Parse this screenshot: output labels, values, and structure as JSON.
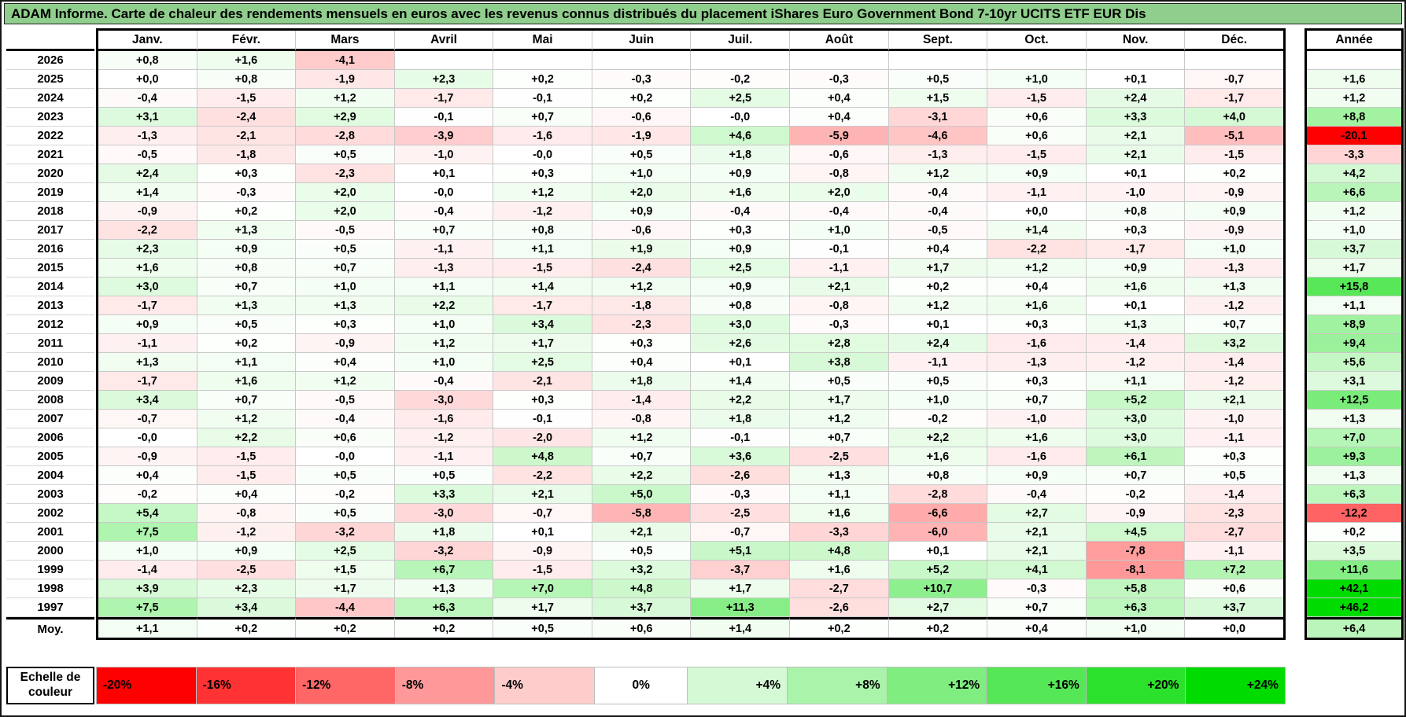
{
  "colors": {
    "title_bg": "#8FCE8C",
    "positive_max": "#00DB00",
    "negative_max": "#FF0000",
    "zero": "#FFFFFF"
  },
  "chart_data": {
    "type": "heatmap",
    "title": "ADAM Informe. Carte de chaleur des rendements mensuels en euros avec les revenus connus distribués du placement iShares Euro Government Bond 7-10yr UCITS ETF EUR Dis",
    "months": [
      "Janv.",
      "Févr.",
      "Mars",
      "Avril",
      "Mai",
      "Juin",
      "Juil.",
      "Août",
      "Sept.",
      "Oct.",
      "Nov.",
      "Déc."
    ],
    "annee_header": "Année",
    "color_mapping": {
      "neg_limit": -20,
      "pos_limit": 24
    },
    "rows": [
      {
        "year": "2026",
        "values": [
          "+0,8",
          "+1,6",
          "-4,1",
          "",
          "",
          "",
          "",
          "",
          "",
          "",
          "",
          ""
        ],
        "annee": ""
      },
      {
        "year": "2025",
        "values": [
          "+0,0",
          "+0,8",
          "-1,9",
          "+2,3",
          "+0,2",
          "-0,3",
          "-0,2",
          "-0,3",
          "+0,5",
          "+1,0",
          "+0,1",
          "-0,7"
        ],
        "annee": "+1,6"
      },
      {
        "year": "2024",
        "values": [
          "-0,4",
          "-1,5",
          "+1,2",
          "-1,7",
          "-0,1",
          "+0,2",
          "+2,5",
          "+0,4",
          "+1,5",
          "-1,5",
          "+2,4",
          "-1,7"
        ],
        "annee": "+1,2"
      },
      {
        "year": "2023",
        "values": [
          "+3,1",
          "-2,4",
          "+2,9",
          "-0,1",
          "+0,7",
          "-0,6",
          "-0,0",
          "+0,4",
          "-3,1",
          "+0,6",
          "+3,3",
          "+4,0"
        ],
        "annee": "+8,8"
      },
      {
        "year": "2022",
        "values": [
          "-1,3",
          "-2,1",
          "-2,8",
          "-3,9",
          "-1,6",
          "-1,9",
          "+4,6",
          "-5,9",
          "-4,6",
          "+0,6",
          "+2,1",
          "-5,1"
        ],
        "annee": "-20,1"
      },
      {
        "year": "2021",
        "values": [
          "-0,5",
          "-1,8",
          "+0,5",
          "-1,0",
          "-0,0",
          "+0,5",
          "+1,8",
          "-0,6",
          "-1,3",
          "-1,5",
          "+2,1",
          "-1,5"
        ],
        "annee": "-3,3"
      },
      {
        "year": "2020",
        "values": [
          "+2,4",
          "+0,3",
          "-2,3",
          "+0,1",
          "+0,3",
          "+1,0",
          "+0,9",
          "-0,8",
          "+1,2",
          "+0,9",
          "+0,1",
          "+0,2"
        ],
        "annee": "+4,2"
      },
      {
        "year": "2019",
        "values": [
          "+1,4",
          "-0,3",
          "+2,0",
          "-0,0",
          "+1,2",
          "+2,0",
          "+1,6",
          "+2,0",
          "-0,4",
          "-1,1",
          "-1,0",
          "-0,9"
        ],
        "annee": "+6,6"
      },
      {
        "year": "2018",
        "values": [
          "-0,9",
          "+0,2",
          "+2,0",
          "-0,4",
          "-1,2",
          "+0,9",
          "-0,4",
          "-0,4",
          "-0,4",
          "+0,0",
          "+0,8",
          "+0,9"
        ],
        "annee": "+1,2"
      },
      {
        "year": "2017",
        "values": [
          "-2,2",
          "+1,3",
          "-0,5",
          "+0,7",
          "+0,8",
          "-0,6",
          "+0,3",
          "+1,0",
          "-0,5",
          "+1,4",
          "+0,3",
          "-0,9"
        ],
        "annee": "+1,0"
      },
      {
        "year": "2016",
        "values": [
          "+2,3",
          "+0,9",
          "+0,5",
          "-1,1",
          "+1,1",
          "+1,9",
          "+0,9",
          "-0,1",
          "+0,4",
          "-2,2",
          "-1,7",
          "+1,0"
        ],
        "annee": "+3,7"
      },
      {
        "year": "2015",
        "values": [
          "+1,6",
          "+0,8",
          "+0,7",
          "-1,3",
          "-1,5",
          "-2,4",
          "+2,5",
          "-1,1",
          "+1,7",
          "+1,2",
          "+0,9",
          "-1,3"
        ],
        "annee": "+1,7"
      },
      {
        "year": "2014",
        "values": [
          "+3,0",
          "+0,7",
          "+1,0",
          "+1,1",
          "+1,4",
          "+1,2",
          "+0,9",
          "+2,1",
          "+0,2",
          "+0,4",
          "+1,6",
          "+1,3"
        ],
        "annee": "+15,8"
      },
      {
        "year": "2013",
        "values": [
          "-1,7",
          "+1,3",
          "+1,3",
          "+2,2",
          "-1,7",
          "-1,8",
          "+0,8",
          "-0,8",
          "+1,2",
          "+1,6",
          "+0,1",
          "-1,2"
        ],
        "annee": "+1,1"
      },
      {
        "year": "2012",
        "values": [
          "+0,9",
          "+0,5",
          "+0,3",
          "+1,0",
          "+3,4",
          "-2,3",
          "+3,0",
          "-0,3",
          "+0,1",
          "+0,3",
          "+1,3",
          "+0,7"
        ],
        "annee": "+8,9"
      },
      {
        "year": "2011",
        "values": [
          "-1,1",
          "+0,2",
          "-0,9",
          "+1,2",
          "+1,7",
          "+0,3",
          "+2,6",
          "+2,8",
          "+2,4",
          "-1,6",
          "-1,4",
          "+3,2"
        ],
        "annee": "+9,4"
      },
      {
        "year": "2010",
        "values": [
          "+1,3",
          "+1,1",
          "+0,4",
          "+1,0",
          "+2,5",
          "+0,4",
          "+0,1",
          "+3,8",
          "-1,1",
          "-1,3",
          "-1,2",
          "-1,4"
        ],
        "annee": "+5,6"
      },
      {
        "year": "2009",
        "values": [
          "-1,7",
          "+1,6",
          "+1,2",
          "-0,4",
          "-2,1",
          "+1,8",
          "+1,4",
          "+0,5",
          "+0,5",
          "+0,3",
          "+1,1",
          "-1,2"
        ],
        "annee": "+3,1"
      },
      {
        "year": "2008",
        "values": [
          "+3,4",
          "+0,7",
          "-0,5",
          "-3,0",
          "+0,3",
          "-1,4",
          "+2,2",
          "+1,7",
          "+1,0",
          "+0,7",
          "+5,2",
          "+2,1"
        ],
        "annee": "+12,5"
      },
      {
        "year": "2007",
        "values": [
          "-0,7",
          "+1,2",
          "-0,4",
          "-1,6",
          "-0,1",
          "-0,8",
          "+1,8",
          "+1,2",
          "-0,2",
          "-1,0",
          "+3,0",
          "-1,0"
        ],
        "annee": "+1,3"
      },
      {
        "year": "2006",
        "values": [
          "-0,0",
          "+2,2",
          "+0,6",
          "-1,2",
          "-2,0",
          "+1,2",
          "-0,1",
          "+0,7",
          "+2,2",
          "+1,6",
          "+3,0",
          "-1,1"
        ],
        "annee": "+7,0"
      },
      {
        "year": "2005",
        "values": [
          "-0,9",
          "-1,5",
          "-0,0",
          "-1,1",
          "+4,8",
          "+0,7",
          "+3,6",
          "-2,5",
          "+1,6",
          "-1,6",
          "+6,1",
          "+0,3"
        ],
        "annee": "+9,3"
      },
      {
        "year": "2004",
        "values": [
          "+0,4",
          "-1,5",
          "+0,5",
          "+0,5",
          "-2,2",
          "+2,2",
          "-2,6",
          "+1,3",
          "+0,8",
          "+0,9",
          "+0,7",
          "+0,5"
        ],
        "annee": "+1,3"
      },
      {
        "year": "2003",
        "values": [
          "-0,2",
          "+0,4",
          "-0,2",
          "+3,3",
          "+2,1",
          "+5,0",
          "-0,3",
          "+1,1",
          "-2,8",
          "-0,4",
          "-0,2",
          "-1,4"
        ],
        "annee": "+6,3"
      },
      {
        "year": "2002",
        "values": [
          "+5,4",
          "-0,8",
          "+0,5",
          "-3,0",
          "-0,7",
          "-5,8",
          "-2,5",
          "+1,6",
          "-6,6",
          "+2,7",
          "-0,9",
          "-2,3"
        ],
        "annee": "-12,2"
      },
      {
        "year": "2001",
        "values": [
          "+7,5",
          "-1,2",
          "-3,2",
          "+1,8",
          "+0,1",
          "+2,1",
          "-0,7",
          "-3,3",
          "-6,0",
          "+2,1",
          "+4,5",
          "-2,7"
        ],
        "annee": "+0,2"
      },
      {
        "year": "2000",
        "values": [
          "+1,0",
          "+0,9",
          "+2,5",
          "-3,2",
          "-0,9",
          "+0,5",
          "+5,1",
          "+4,8",
          "+0,1",
          "+2,1",
          "-7,8",
          "-1,1"
        ],
        "annee": "+3,5"
      },
      {
        "year": "1999",
        "values": [
          "-1,4",
          "-2,5",
          "+1,5",
          "+6,7",
          "-1,5",
          "+3,2",
          "-3,7",
          "+1,6",
          "+5,2",
          "+4,1",
          "-8,1",
          "+7,2"
        ],
        "annee": "+11,6"
      },
      {
        "year": "1998",
        "values": [
          "+3,9",
          "+2,3",
          "+1,7",
          "+1,3",
          "+7,0",
          "+4,8",
          "+1,7",
          "-2,7",
          "+10,7",
          "-0,3",
          "+5,8",
          "+0,6"
        ],
        "annee": "+42,1"
      },
      {
        "year": "1997",
        "values": [
          "+7,5",
          "+3,4",
          "-4,4",
          "+6,3",
          "+1,7",
          "+3,7",
          "+11,3",
          "-2,6",
          "+2,7",
          "+0,7",
          "+6,3",
          "+3,7"
        ],
        "annee": "+46,2"
      }
    ],
    "moy": {
      "label": "Moy.",
      "values": [
        "+1,1",
        "+0,2",
        "+0,2",
        "+0,2",
        "+0,5",
        "+0,6",
        "+1,4",
        "+0,2",
        "+0,2",
        "+0,4",
        "+1,0",
        "+0,0"
      ],
      "annee": "+6,4"
    },
    "scale": {
      "label": "Echelle de couleur",
      "stops": [
        {
          "label": "-20%",
          "value": -20
        },
        {
          "label": "-16%",
          "value": -16
        },
        {
          "label": "-12%",
          "value": -12
        },
        {
          "label": "-8%",
          "value": -8
        },
        {
          "label": "-4%",
          "value": -4
        },
        {
          "label": "0%",
          "value": 0
        },
        {
          "label": "+4%",
          "value": 4
        },
        {
          "label": "+8%",
          "value": 8
        },
        {
          "label": "+12%",
          "value": 12
        },
        {
          "label": "+16%",
          "value": 16
        },
        {
          "label": "+20%",
          "value": 20
        },
        {
          "label": "+24%",
          "value": 24
        }
      ]
    }
  }
}
